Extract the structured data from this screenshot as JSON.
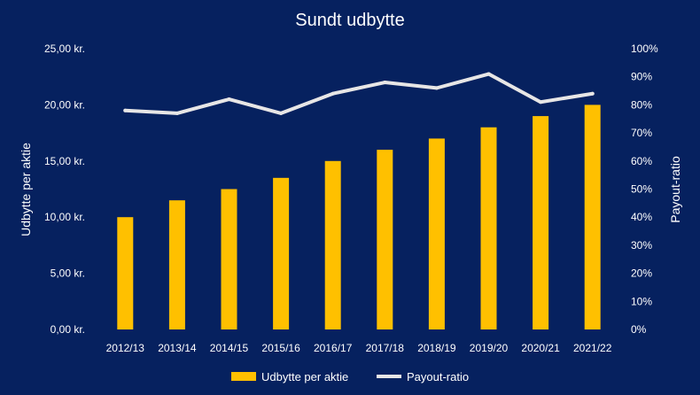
{
  "colors": {
    "background": "#06215f",
    "bar": "#ffc000",
    "line": "#e7e6e6",
    "text": "#ffffff"
  },
  "chart_data": {
    "type": "bar",
    "title": "Sundt udbytte",
    "xlabel": "",
    "ylabel": "Udbytte per aktie",
    "y2label": "Payout-ratio",
    "categories": [
      "2012/13",
      "2013/14",
      "2014/15",
      "2015/16",
      "2016/17",
      "2017/18",
      "2018/19",
      "2019/20",
      "2020/21",
      "2021/22"
    ],
    "ylim": [
      0,
      25
    ],
    "y2lim": [
      0,
      100
    ],
    "y_ticks": [
      "0,00 kr.",
      "5,00 kr.",
      "10,00 kr.",
      "15,00 kr.",
      "20,00 kr.",
      "25,00 kr."
    ],
    "y2_ticks": [
      "0%",
      "10%",
      "20%",
      "30%",
      "40%",
      "50%",
      "60%",
      "70%",
      "80%",
      "90%",
      "100%"
    ],
    "grid": false,
    "legend_position": "bottom",
    "series": [
      {
        "name": "Udbytte per aktie",
        "type": "bar",
        "axis": "left",
        "values": [
          10.0,
          11.5,
          12.5,
          13.5,
          15.0,
          16.0,
          17.0,
          18.0,
          19.0,
          20.0
        ]
      },
      {
        "name": "Payout-ratio",
        "type": "line",
        "axis": "right",
        "values": [
          78,
          77,
          82,
          77,
          84,
          88,
          86,
          91,
          81,
          84
        ]
      }
    ]
  }
}
